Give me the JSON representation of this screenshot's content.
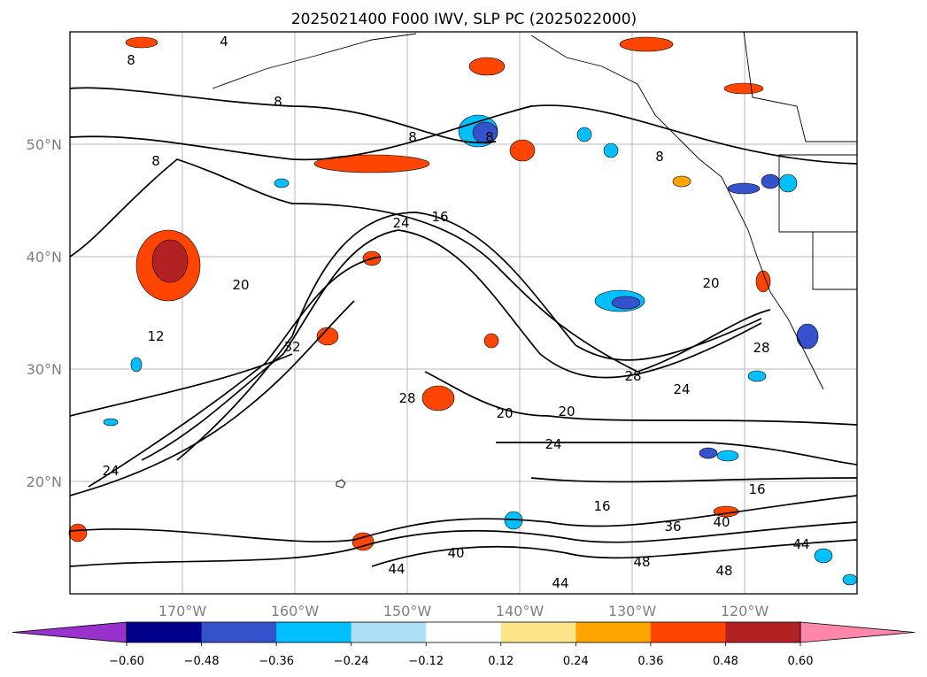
{
  "title": "2025021400 F000 IWV, SLP PC (2025022000)",
  "map": {
    "lat_ticks": [
      "50°N",
      "40°N",
      "30°N",
      "20°N"
    ],
    "lon_ticks": [
      "170°W",
      "160°W",
      "150°W",
      "140°W",
      "130°W",
      "120°W"
    ],
    "extent": {
      "lon": [
        -180,
        -110
      ],
      "lat": [
        10,
        60
      ]
    },
    "gridlines": true,
    "contour_labels": [
      "4",
      "8",
      "8",
      "8",
      "8",
      "8",
      "8",
      "12",
      "16",
      "16",
      "16",
      "20",
      "20",
      "20",
      "20",
      "24",
      "24",
      "24",
      "24",
      "28",
      "28",
      "28",
      "32",
      "36",
      "40",
      "40",
      "44",
      "44",
      "44",
      "48",
      "48"
    ]
  },
  "colorbar": {
    "ticks": [
      "−0.60",
      "−0.48",
      "−0.36",
      "−0.24",
      "−0.12",
      "0.12",
      "0.24",
      "0.36",
      "0.48",
      "0.60"
    ],
    "colors": [
      "#9932cc",
      "#00008b",
      "#3352cc",
      "#00bfff",
      "#ade0f7",
      "#ffffff",
      "#fde68a",
      "#ffa500",
      "#ff4500",
      "#b22222",
      "#ff88aa"
    ]
  }
}
